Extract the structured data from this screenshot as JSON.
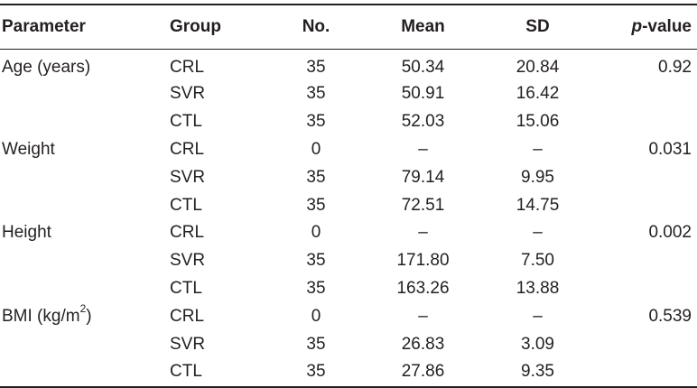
{
  "table": {
    "headers": {
      "parameter": "Parameter",
      "group": "Group",
      "no": "No.",
      "mean": "Mean",
      "sd": "SD",
      "p_italic": "p",
      "p_rest": "-value"
    },
    "rows": [
      {
        "parameter": "Age (years)",
        "group": "CRL",
        "no": "35",
        "mean": "50.34",
        "sd": "20.84",
        "p": "0.92"
      },
      {
        "parameter": "",
        "group": "SVR",
        "no": "35",
        "mean": "50.91",
        "sd": "16.42",
        "p": ""
      },
      {
        "parameter": "",
        "group": "CTL",
        "no": "35",
        "mean": "52.03",
        "sd": "15.06",
        "p": ""
      },
      {
        "parameter": "Weight",
        "group": "CRL",
        "no": "0",
        "mean": "–",
        "sd": "–",
        "p": "0.031"
      },
      {
        "parameter": "",
        "group": "SVR",
        "no": "35",
        "mean": "79.14",
        "sd": "9.95",
        "p": ""
      },
      {
        "parameter": "",
        "group": "CTL",
        "no": "35",
        "mean": "72.51",
        "sd": "14.75",
        "p": ""
      },
      {
        "parameter": "Height",
        "group": "CRL",
        "no": "0",
        "mean": "–",
        "sd": "–",
        "p": "0.002"
      },
      {
        "parameter": "",
        "group": "SVR",
        "no": "35",
        "mean": "171.80",
        "sd": "7.50",
        "p": ""
      },
      {
        "parameter": "",
        "group": "CTL",
        "no": "35",
        "mean": "163.26",
        "sd": "13.88",
        "p": ""
      },
      {
        "parameter": "BMI (kg/m",
        "parameter_sup": "2",
        "parameter_tail": ")",
        "group": "CRL",
        "no": "0",
        "mean": "–",
        "sd": "–",
        "p": "0.539"
      },
      {
        "parameter": "",
        "group": "SVR",
        "no": "35",
        "mean": "26.83",
        "sd": "3.09",
        "p": ""
      },
      {
        "parameter": "",
        "group": "CTL",
        "no": "35",
        "mean": "27.86",
        "sd": "9.35",
        "p": ""
      }
    ]
  }
}
